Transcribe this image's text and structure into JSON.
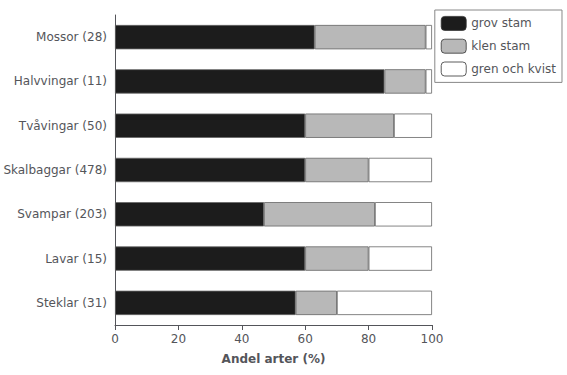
{
  "chart_data": {
    "type": "bar",
    "orientation": "horizontal",
    "stacked": true,
    "xlabel": "Andel arter (%)",
    "categories": [
      "Mossor (28)",
      "Halvvingar (11)",
      "Tvåvingar (50)",
      "Skalbaggar (478)",
      "Svampar (203)",
      "Lavar (15)",
      "Steklar (31)"
    ],
    "series": [
      {
        "name": "grov stam",
        "color": "#1c1c1c",
        "values": [
          63,
          85,
          60,
          60,
          47,
          60,
          57
        ]
      },
      {
        "name": "klen stam",
        "color": "#b8b8b8",
        "values": [
          35,
          13,
          28,
          20,
          35,
          20,
          13
        ]
      },
      {
        "name": "gren och kvist",
        "color": "#ffffff",
        "values": [
          2,
          2,
          12,
          20,
          18,
          20,
          30
        ]
      }
    ],
    "xlim": [
      0,
      100
    ],
    "xticks": [
      0,
      20,
      40,
      60,
      80,
      100
    ],
    "grid": false,
    "legend": "upper right"
  }
}
